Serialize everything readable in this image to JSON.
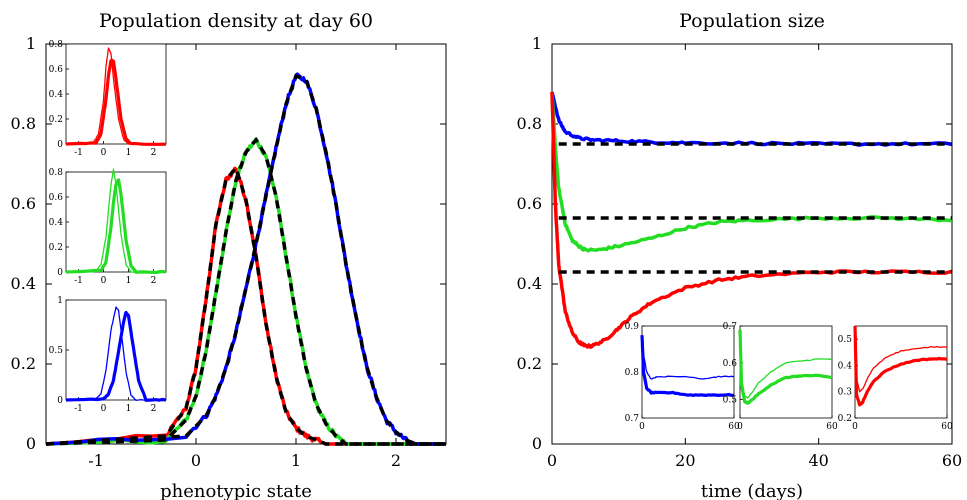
{
  "colors": {
    "red": "#ff0000",
    "green": "#22dd22",
    "blue": "#0000ff",
    "dashed": "#000000"
  },
  "chart_data": [
    {
      "type": "line",
      "title": "Population density at day 60",
      "xlabel": "phenotypic state",
      "ylabel": "",
      "xlim": [
        -1.5,
        2.5
      ],
      "ylim": [
        0,
        1
      ],
      "xticks": [
        "-1",
        "0",
        "1",
        "2"
      ],
      "yticks": [
        "0",
        "0.2",
        "0.4",
        "0.6",
        "0.8",
        "1"
      ],
      "grid": false,
      "series": [
        {
          "color": "red",
          "style": "solid-noisy",
          "x": [
            -1.5,
            -0.3,
            -0.1,
            0.0,
            0.1,
            0.2,
            0.3,
            0.4,
            0.5,
            0.6,
            0.7,
            0.8,
            0.9,
            1.0,
            1.1,
            1.2,
            1.3,
            2.5
          ],
          "y": [
            0,
            0.02,
            0.09,
            0.19,
            0.36,
            0.55,
            0.66,
            0.69,
            0.61,
            0.47,
            0.3,
            0.17,
            0.08,
            0.04,
            0.02,
            0.01,
            0.0,
            0
          ]
        },
        {
          "color": "green",
          "style": "solid-noisy",
          "x": [
            -1.5,
            -0.3,
            -0.1,
            0.0,
            0.1,
            0.2,
            0.3,
            0.4,
            0.5,
            0.6,
            0.7,
            0.8,
            0.9,
            1.0,
            1.1,
            1.2,
            1.3,
            1.4,
            1.5,
            2.5
          ],
          "y": [
            0,
            0.01,
            0.06,
            0.12,
            0.23,
            0.38,
            0.53,
            0.66,
            0.73,
            0.76,
            0.72,
            0.62,
            0.47,
            0.32,
            0.19,
            0.1,
            0.05,
            0.02,
            0.0,
            0
          ]
        },
        {
          "color": "blue",
          "style": "solid-noisy",
          "x": [
            -1.5,
            -0.1,
            0.1,
            0.2,
            0.3,
            0.4,
            0.5,
            0.6,
            0.7,
            0.8,
            0.9,
            1.0,
            1.1,
            1.2,
            1.3,
            1.4,
            1.5,
            1.6,
            1.7,
            1.8,
            1.9,
            2.0,
            2.1,
            2.2,
            2.5
          ],
          "y": [
            0,
            0.02,
            0.07,
            0.12,
            0.19,
            0.28,
            0.39,
            0.5,
            0.62,
            0.74,
            0.85,
            0.92,
            0.91,
            0.84,
            0.73,
            0.6,
            0.45,
            0.32,
            0.2,
            0.12,
            0.06,
            0.03,
            0.01,
            0.0,
            0
          ]
        },
        {
          "color": "dashed",
          "style": "dashed",
          "x": [
            -1.5,
            -0.3,
            -0.1,
            0.0,
            0.1,
            0.2,
            0.3,
            0.4,
            0.5,
            0.6,
            0.7,
            0.8,
            0.9,
            1.0,
            1.1,
            1.2,
            1.3,
            2.5
          ],
          "y": [
            0,
            0.02,
            0.09,
            0.19,
            0.36,
            0.55,
            0.66,
            0.69,
            0.61,
            0.47,
            0.3,
            0.17,
            0.08,
            0.04,
            0.02,
            0.01,
            0.0,
            0
          ]
        },
        {
          "color": "dashed",
          "style": "dashed",
          "x": [
            -1.5,
            -0.3,
            -0.1,
            0.0,
            0.1,
            0.2,
            0.3,
            0.4,
            0.5,
            0.6,
            0.7,
            0.8,
            0.9,
            1.0,
            1.1,
            1.2,
            1.3,
            1.4,
            1.5,
            2.5
          ],
          "y": [
            0,
            0.01,
            0.06,
            0.12,
            0.23,
            0.38,
            0.53,
            0.66,
            0.73,
            0.76,
            0.72,
            0.62,
            0.47,
            0.32,
            0.19,
            0.1,
            0.05,
            0.02,
            0.0,
            0
          ]
        },
        {
          "color": "dashed",
          "style": "dashed",
          "x": [
            -1.5,
            -0.1,
            0.1,
            0.2,
            0.3,
            0.4,
            0.5,
            0.6,
            0.7,
            0.8,
            0.9,
            1.0,
            1.1,
            1.2,
            1.3,
            1.4,
            1.5,
            1.6,
            1.7,
            1.8,
            1.9,
            2.0,
            2.1,
            2.2,
            2.5
          ],
          "y": [
            0,
            0.02,
            0.07,
            0.12,
            0.19,
            0.28,
            0.39,
            0.5,
            0.62,
            0.74,
            0.85,
            0.92,
            0.91,
            0.84,
            0.73,
            0.6,
            0.45,
            0.32,
            0.2,
            0.12,
            0.06,
            0.03,
            0.01,
            0.0,
            0
          ]
        }
      ],
      "insets": [
        {
          "color": "red",
          "xlim": [
            -1.5,
            2.5
          ],
          "ylim": [
            0,
            0.8
          ],
          "xticks": [
            "-1",
            "0",
            "1",
            "2"
          ],
          "yticks": [
            "0",
            "0.2",
            "0.4",
            "0.6",
            "0.8"
          ],
          "series": [
            {
              "width": "thin",
              "x": [
                -1.5,
                -0.4,
                -0.2,
                0.0,
                0.1,
                0.2,
                0.3,
                0.4,
                0.6,
                0.8,
                1.0,
                2.5
              ],
              "y": [
                0,
                0.01,
                0.08,
                0.35,
                0.62,
                0.77,
                0.72,
                0.52,
                0.2,
                0.04,
                0.0,
                0
              ]
            },
            {
              "width": "thick",
              "x": [
                -1.5,
                -0.3,
                -0.1,
                0.1,
                0.2,
                0.3,
                0.4,
                0.5,
                0.7,
                0.9,
                1.1,
                2.5
              ],
              "y": [
                0,
                0.01,
                0.08,
                0.36,
                0.55,
                0.67,
                0.66,
                0.52,
                0.2,
                0.04,
                0.0,
                0
              ]
            }
          ]
        },
        {
          "color": "green",
          "xlim": [
            -1.5,
            2.5
          ],
          "ylim": [
            0,
            0.8
          ],
          "xticks": [
            "-1",
            "0",
            "1",
            "2"
          ],
          "yticks": [
            "0",
            "0.2",
            "0.4",
            "0.6",
            "0.8"
          ],
          "series": [
            {
              "width": "thin",
              "x": [
                -1.5,
                -0.3,
                -0.1,
                0.1,
                0.2,
                0.3,
                0.4,
                0.5,
                0.7,
                0.9,
                1.1,
                2.5
              ],
              "y": [
                0,
                0.01,
                0.06,
                0.28,
                0.5,
                0.7,
                0.82,
                0.7,
                0.3,
                0.06,
                0.0,
                0
              ]
            },
            {
              "width": "thick",
              "x": [
                -1.5,
                -0.1,
                0.1,
                0.3,
                0.4,
                0.5,
                0.6,
                0.7,
                0.9,
                1.1,
                1.3,
                2.5
              ],
              "y": [
                0,
                0.01,
                0.08,
                0.36,
                0.56,
                0.7,
                0.74,
                0.62,
                0.26,
                0.05,
                0.0,
                0
              ]
            }
          ]
        },
        {
          "color": "blue",
          "xlim": [
            -1.5,
            2.5
          ],
          "ylim": [
            0,
            1
          ],
          "xticks": [
            "-1",
            "0",
            "1",
            "2"
          ],
          "yticks": [
            "0",
            "0.5",
            "1"
          ],
          "series": [
            {
              "width": "thin",
              "x": [
                -1.5,
                -0.3,
                -0.1,
                0.1,
                0.3,
                0.5,
                0.6,
                0.7,
                0.9,
                1.1,
                1.3,
                2.5
              ],
              "y": [
                0,
                0.01,
                0.06,
                0.3,
                0.7,
                0.93,
                0.9,
                0.7,
                0.28,
                0.05,
                0.0,
                0
              ]
            },
            {
              "width": "thick",
              "x": [
                -1.5,
                0.0,
                0.2,
                0.4,
                0.6,
                0.8,
                0.9,
                1.0,
                1.2,
                1.4,
                1.7,
                2.5
              ],
              "y": [
                0,
                0.01,
                0.06,
                0.2,
                0.48,
                0.78,
                0.88,
                0.84,
                0.52,
                0.2,
                0.0,
                0
              ]
            }
          ]
        }
      ]
    },
    {
      "type": "line",
      "title": "Population size",
      "xlabel": "time (days)",
      "ylabel": "",
      "xlim": [
        0,
        60
      ],
      "ylim": [
        0,
        1
      ],
      "xticks": [
        "0",
        "20",
        "40",
        "60"
      ],
      "yticks": [
        "0",
        "0.2",
        "0.4",
        "0.6",
        "0.8",
        "1"
      ],
      "grid": false,
      "series": [
        {
          "color": "blue",
          "style": "solid-noisy",
          "x": [
            0,
            1,
            2,
            4,
            6,
            10,
            15,
            20,
            30,
            40,
            50,
            60
          ],
          "y": [
            0.88,
            0.81,
            0.78,
            0.765,
            0.76,
            0.758,
            0.755,
            0.753,
            0.752,
            0.75,
            0.75,
            0.75
          ]
        },
        {
          "color": "green",
          "style": "solid-noisy",
          "x": [
            0,
            0.5,
            1,
            2,
            3,
            4,
            5,
            7,
            10,
            15,
            20,
            25,
            30,
            40,
            50,
            60
          ],
          "y": [
            0.88,
            0.74,
            0.64,
            0.55,
            0.51,
            0.495,
            0.485,
            0.485,
            0.495,
            0.515,
            0.54,
            0.555,
            0.56,
            0.565,
            0.565,
            0.56
          ]
        },
        {
          "color": "red",
          "style": "solid-noisy",
          "x": [
            0,
            0.5,
            1,
            2,
            3,
            4,
            5,
            6,
            8,
            10,
            12,
            15,
            20,
            25,
            30,
            40,
            50,
            60
          ],
          "y": [
            0.88,
            0.6,
            0.45,
            0.33,
            0.28,
            0.255,
            0.245,
            0.245,
            0.26,
            0.29,
            0.32,
            0.355,
            0.39,
            0.41,
            0.42,
            0.43,
            0.43,
            0.43
          ]
        },
        {
          "color": "dashed",
          "style": "dashed",
          "x": [
            1,
            60
          ],
          "y": [
            0.75,
            0.75
          ]
        },
        {
          "color": "dashed",
          "style": "dashed",
          "x": [
            1,
            60
          ],
          "y": [
            0.565,
            0.565
          ]
        },
        {
          "color": "dashed",
          "style": "dashed",
          "x": [
            1,
            60
          ],
          "y": [
            0.43,
            0.43
          ]
        }
      ],
      "insets": [
        {
          "color": "blue",
          "xlim": [
            0,
            60
          ],
          "ylim": [
            0.7,
            0.9
          ],
          "xticks": [
            "0",
            "60"
          ],
          "yticks": [
            "0.7",
            "0.8",
            "0.9"
          ],
          "series": [
            {
              "width": "thin",
              "x": [
                0,
                1,
                3,
                6,
                10,
                20,
                30,
                40,
                50,
                60
              ],
              "y": [
                0.88,
                0.84,
                0.8,
                0.785,
                0.79,
                0.79,
                0.79,
                0.785,
                0.79,
                0.79
              ]
            },
            {
              "width": "thick",
              "x": [
                0,
                1,
                3,
                6,
                10,
                20,
                30,
                40,
                50,
                60
              ],
              "y": [
                0.88,
                0.8,
                0.765,
                0.755,
                0.755,
                0.755,
                0.75,
                0.75,
                0.75,
                0.75
              ]
            }
          ]
        },
        {
          "color": "green",
          "xlim": [
            0,
            60
          ],
          "ylim": [
            0.45,
            0.7
          ],
          "xticks": [
            "0",
            "60"
          ],
          "yticks": [
            "0.5",
            "0.6",
            "0.7"
          ],
          "series": [
            {
              "width": "thin",
              "x": [
                0,
                1,
                3,
                5,
                8,
                12,
                20,
                30,
                40,
                50,
                60
              ],
              "y": [
                0.69,
                0.56,
                0.51,
                0.505,
                0.52,
                0.545,
                0.575,
                0.6,
                0.605,
                0.61,
                0.61
              ]
            },
            {
              "width": "thick",
              "x": [
                0,
                1,
                3,
                5,
                8,
                12,
                20,
                30,
                40,
                50,
                60
              ],
              "y": [
                0.69,
                0.54,
                0.495,
                0.49,
                0.5,
                0.515,
                0.54,
                0.56,
                0.565,
                0.565,
                0.56
              ]
            }
          ]
        },
        {
          "color": "red",
          "xlim": [
            0,
            60
          ],
          "ylim": [
            0.2,
            0.55
          ],
          "xticks": [
            "0",
            "60"
          ],
          "yticks": [
            "0.2",
            "0.3",
            "0.4",
            "0.5"
          ],
          "series": [
            {
              "width": "thin",
              "x": [
                0,
                1,
                3,
                5,
                8,
                12,
                20,
                30,
                40,
                50,
                60
              ],
              "y": [
                0.55,
                0.35,
                0.3,
                0.31,
                0.35,
                0.39,
                0.43,
                0.455,
                0.465,
                0.47,
                0.47
              ]
            },
            {
              "width": "thick",
              "x": [
                0,
                1,
                3,
                5,
                8,
                12,
                20,
                30,
                40,
                50,
                60
              ],
              "y": [
                0.55,
                0.29,
                0.25,
                0.26,
                0.3,
                0.34,
                0.38,
                0.405,
                0.42,
                0.425,
                0.425
              ]
            }
          ]
        }
      ]
    }
  ]
}
